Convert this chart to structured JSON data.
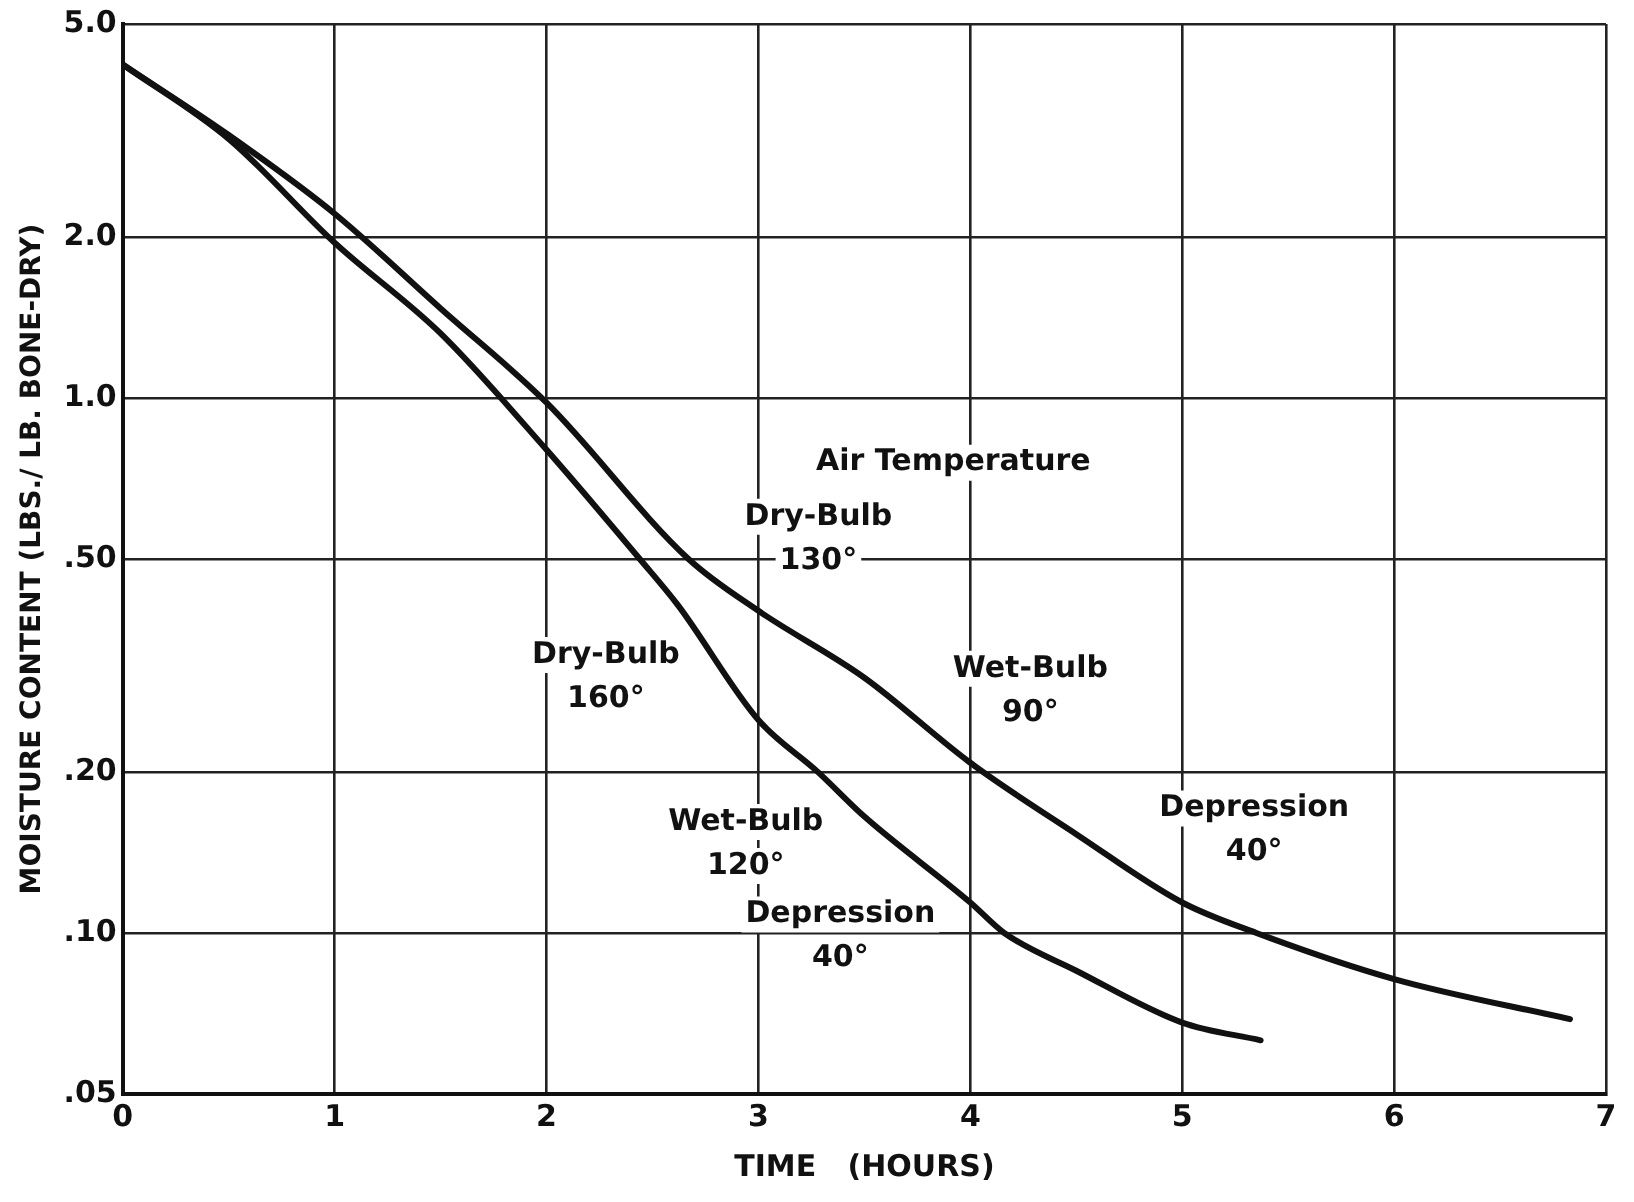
{
  "chart_data": {
    "type": "line",
    "xlabel": "TIME   (HOURS)",
    "ylabel": "MOISTURE CONTENT (LBS./ LB. BONE-DRY)",
    "xlim": [
      0,
      7
    ],
    "xticks": [
      0,
      1,
      2,
      3,
      4,
      5,
      6,
      7
    ],
    "ylim": [
      0.05,
      5
    ],
    "yticks": [
      {
        "value": 0.05,
        "label": ".05"
      },
      {
        "value": 0.1,
        "label": ".10"
      },
      {
        "value": 0.2,
        "label": ".20"
      },
      {
        "value": 0.5,
        "label": ".50"
      },
      {
        "value": 1,
        "label": "1.0"
      },
      {
        "value": 2,
        "label": "2.0"
      },
      {
        "value": 5,
        "label": "5.0"
      }
    ],
    "log": "y",
    "grid": true,
    "legend": false,
    "marker": "none",
    "line_style": "solid",
    "series": [
      {
        "color": "#111111",
        "x": [
          0,
          0.5,
          1,
          1.5,
          2,
          2.44,
          2.62,
          3,
          3.28,
          3.5,
          4,
          4.16,
          4.5,
          5,
          5.37
        ],
        "values": [
          4.2,
          3.05,
          1.95,
          1.32,
          0.8,
          0.5,
          0.41,
          0.25,
          0.2,
          0.165,
          0.114,
          0.1,
          0.085,
          0.068,
          0.063
        ]
      },
      {
        "color": "#111111",
        "x": [
          0,
          0.5,
          1,
          1.5,
          2,
          2.67,
          3,
          3.5,
          4,
          4.5,
          5,
          5.35,
          6,
          6.83
        ],
        "values": [
          4.2,
          3.1,
          2.21,
          1.47,
          0.98,
          0.5,
          0.4,
          0.3,
          0.208,
          0.153,
          0.114,
          0.1,
          0.082,
          0.069
        ]
      }
    ],
    "annotations": [
      "Air Temperature",
      {
        "text": "Dry-Bulb\n160°",
        "x": 2.62,
        "y": 0.41
      },
      {
        "text": "Wet-Bulb\n120°",
        "x": 3.28,
        "y": 0.2
      },
      {
        "text": "Depression\n40°",
        "x": 3.5,
        "y": 0.165
      },
      {
        "text": "Dry-Bulb\n130°",
        "x": 3,
        "y": 0.4
      },
      {
        "text": "Wet-Bulb\n90°",
        "x": 4,
        "y": 0.208
      },
      {
        "text": "Depression\n40°",
        "x": 5,
        "y": 0.114
      }
    ]
  }
}
